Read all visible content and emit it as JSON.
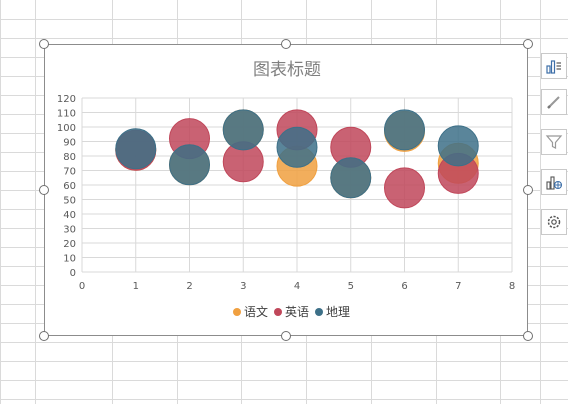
{
  "chart_data": {
    "type": "scatter",
    "subtype": "bubble",
    "title": "图表标题",
    "xlabel": "",
    "ylabel": "",
    "xlim": [
      0,
      8
    ],
    "ylim": [
      0,
      120
    ],
    "xticks": [
      0,
      1,
      2,
      3,
      4,
      5,
      6,
      7,
      8
    ],
    "yticks": [
      0,
      10,
      20,
      30,
      40,
      50,
      60,
      70,
      80,
      90,
      100,
      110,
      120
    ],
    "grid": true,
    "legend_position": "bottom",
    "series": [
      {
        "name": "语文",
        "color": "#f0a040",
        "points": [
          {
            "x": 1,
            "y": 84,
            "size": 1
          },
          {
            "x": 2,
            "y": 74,
            "size": 1
          },
          {
            "x": 3,
            "y": 98,
            "size": 1
          },
          {
            "x": 4,
            "y": 73,
            "size": 1
          },
          {
            "x": 5,
            "y": 65,
            "size": 1
          },
          {
            "x": 6,
            "y": 97,
            "size": 1
          },
          {
            "x": 7,
            "y": 75,
            "size": 1
          }
        ]
      },
      {
        "name": "英语",
        "color": "#c0475a",
        "points": [
          {
            "x": 1,
            "y": 84,
            "size": 1
          },
          {
            "x": 2,
            "y": 92,
            "size": 1
          },
          {
            "x": 3,
            "y": 76,
            "size": 1
          },
          {
            "x": 4,
            "y": 98,
            "size": 1
          },
          {
            "x": 5,
            "y": 86,
            "size": 1
          },
          {
            "x": 6,
            "y": 58,
            "size": 1
          },
          {
            "x": 7,
            "y": 68,
            "size": 1
          }
        ]
      },
      {
        "name": "地理",
        "color": "#3d7088",
        "points": [
          {
            "x": 1,
            "y": 85,
            "size": 1
          },
          {
            "x": 2,
            "y": 74,
            "size": 1
          },
          {
            "x": 3,
            "y": 98,
            "size": 1
          },
          {
            "x": 4,
            "y": 86,
            "size": 1
          },
          {
            "x": 5,
            "y": 65,
            "size": 1
          },
          {
            "x": 6,
            "y": 98,
            "size": 1
          },
          {
            "x": 7,
            "y": 87,
            "size": 1
          }
        ]
      }
    ]
  },
  "colors": {
    "sheet_gridline": "#dadada",
    "plot_gridline": "#d9d9d9",
    "axis_text": "#595959",
    "title_text": "#7f7f7f"
  },
  "side_buttons": [
    {
      "name": "chart-elements-button",
      "icon": "chart-elements-icon"
    },
    {
      "name": "chart-styles-button",
      "icon": "brush-icon"
    },
    {
      "name": "chart-filters-button",
      "icon": "filter-icon"
    },
    {
      "name": "data-table-button",
      "icon": "chart-data-icon"
    },
    {
      "name": "chart-settings-button",
      "icon": "gear-icon"
    }
  ]
}
